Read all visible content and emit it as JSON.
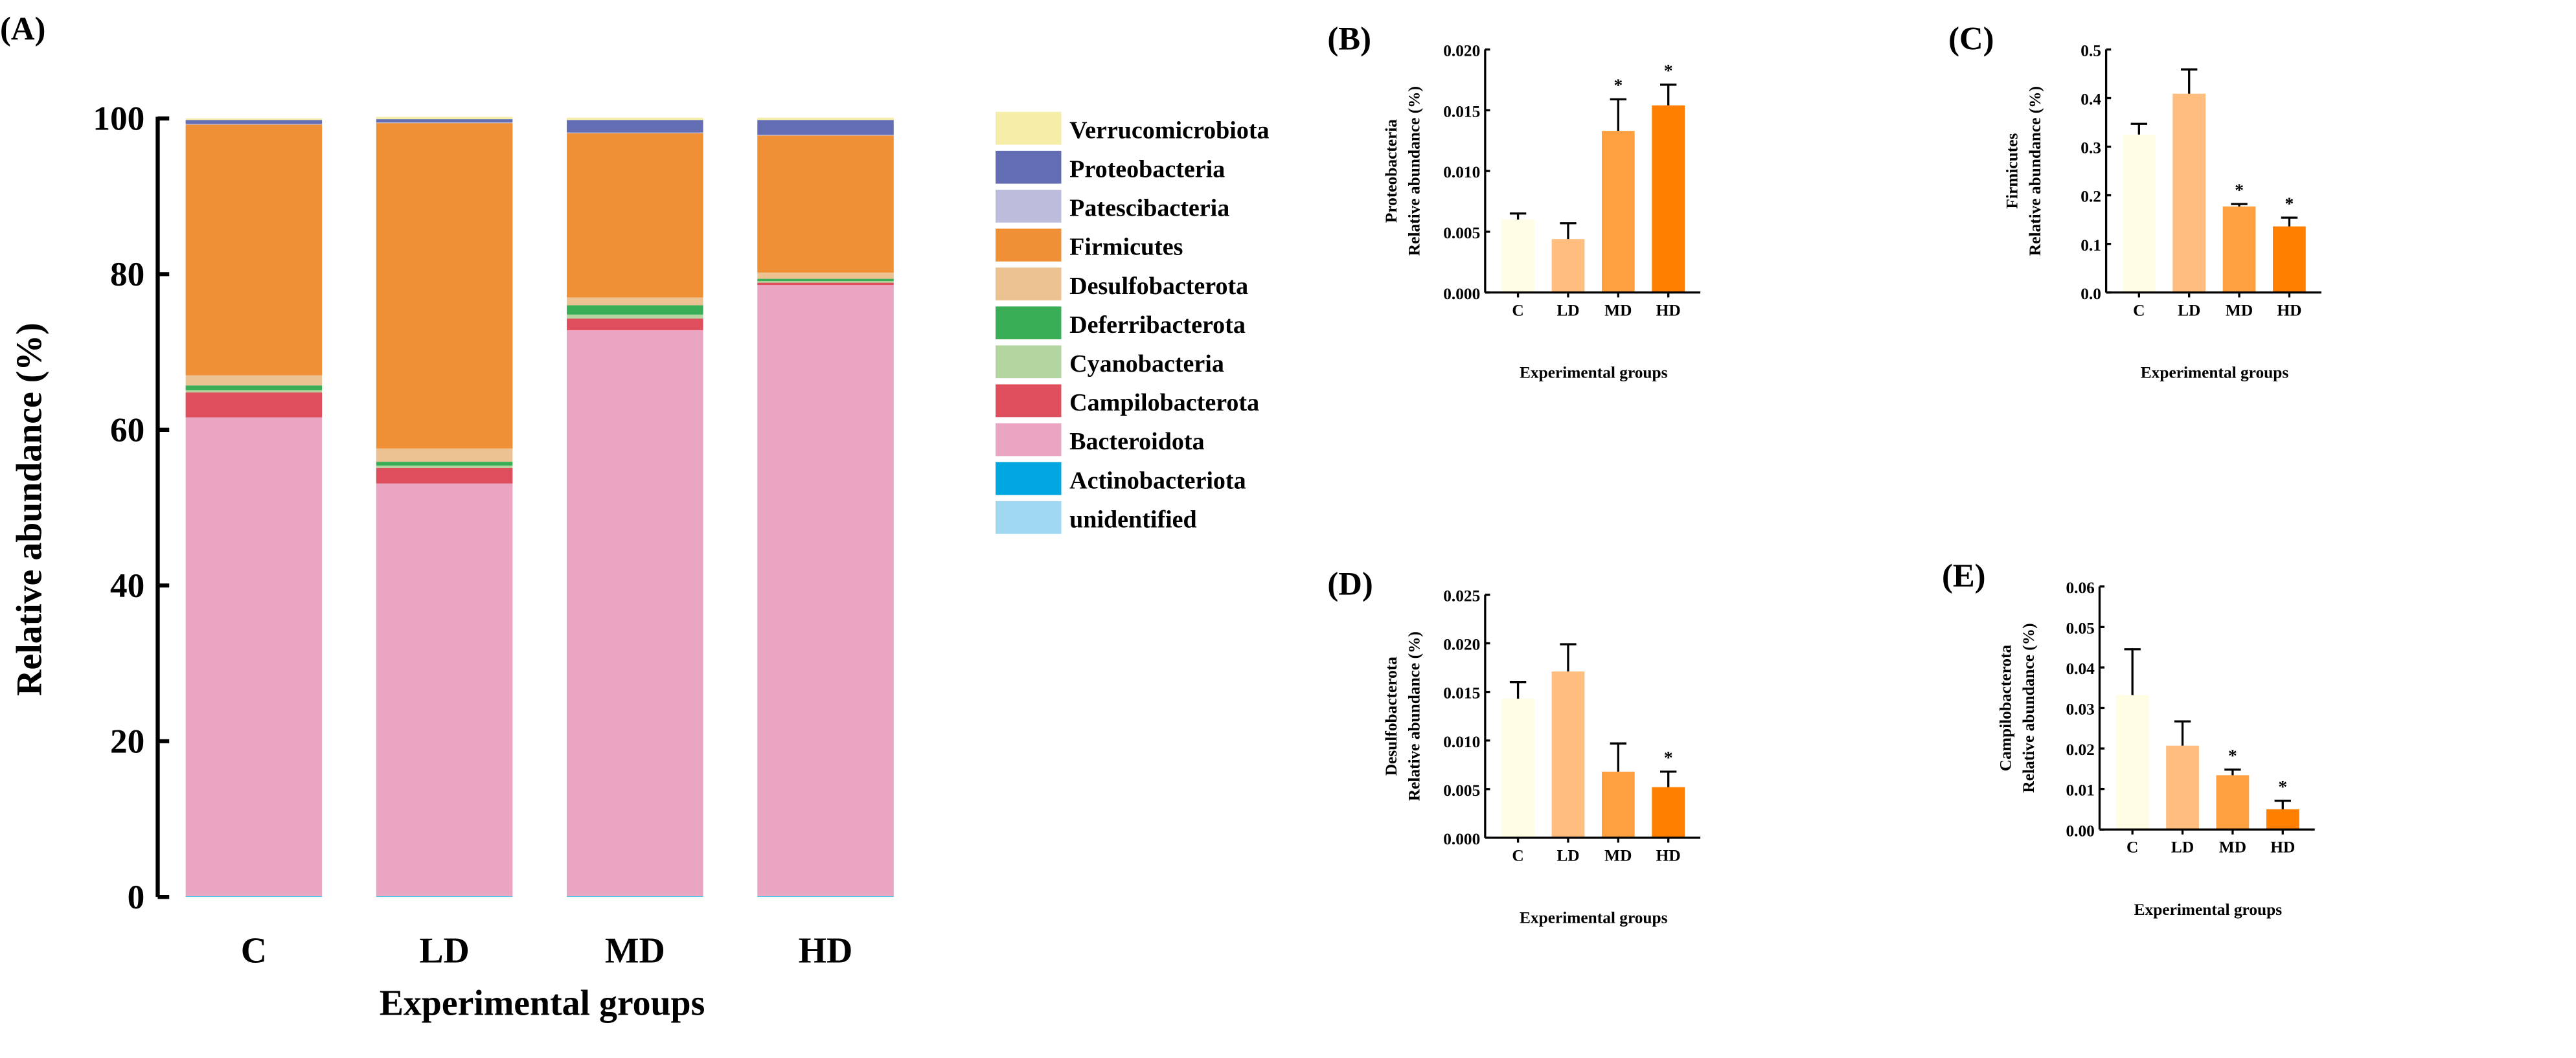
{
  "chart_data": [
    {
      "panel": "(A)",
      "type": "bar",
      "stacked": true,
      "categories": [
        "C",
        "LD",
        "MD",
        "HD"
      ],
      "xlabel": "Experimental groups",
      "ylabel": "Relative abundance (%)",
      "ylim": [
        0,
        100
      ],
      "yticks": [
        "0",
        "20",
        "40",
        "60",
        "80",
        "100"
      ],
      "legend_position": "right",
      "series": [
        {
          "name": "Verrucomicrobiota",
          "color": "#f5eda8",
          "values": [
            0.2,
            0.3,
            0.3,
            0.3
          ]
        },
        {
          "name": "Proteobacteria",
          "color": "#626db3",
          "values": [
            0.5,
            0.4,
            1.6,
            1.9
          ]
        },
        {
          "name": "Patescibacteria",
          "color": "#bcbcdc",
          "values": [
            0.1,
            0.1,
            0.1,
            0.1
          ]
        },
        {
          "name": "Firmicutes",
          "color": "#ef9036",
          "values": [
            32.2,
            41.8,
            21.1,
            17.6
          ]
        },
        {
          "name": "Desulfobacterota",
          "color": "#edc293",
          "values": [
            1.3,
            1.7,
            1.0,
            0.8
          ]
        },
        {
          "name": "Deferribacterota",
          "color": "#3aae57",
          "values": [
            0.6,
            0.5,
            1.2,
            0.3
          ]
        },
        {
          "name": "Cyanobacteria",
          "color": "#b3d59f",
          "values": [
            0.3,
            0.3,
            0.5,
            0.2
          ]
        },
        {
          "name": "Campilobacterota",
          "color": "#df4e5d",
          "values": [
            3.2,
            2.0,
            1.5,
            0.3
          ]
        },
        {
          "name": "Bacteroidota",
          "color": "#e9a5c1",
          "values": [
            61.5,
            53.0,
            72.7,
            78.5
          ]
        },
        {
          "name": "Actinobacteriota",
          "color": "#00a6e0",
          "values": [
            0.05,
            0.05,
            0.05,
            0.05
          ]
        },
        {
          "name": "unidentified",
          "color": "#9fd8f0",
          "values": [
            0.05,
            0.05,
            0.05,
            0.05
          ]
        }
      ]
    },
    {
      "panel": "(B)",
      "type": "bar",
      "categories": [
        "C",
        "LD",
        "MD",
        "HD"
      ],
      "values": [
        0.006,
        0.0044,
        0.0133,
        0.0154
      ],
      "errors": [
        0.0005,
        0.0013,
        0.0026,
        0.0017
      ],
      "significant": [
        "",
        "",
        "*",
        "*"
      ],
      "ylabel_taxon": "Proteobacteria",
      "ylabel": "Relative abundance (%)",
      "xlabel": "Experimental groups",
      "ylim": [
        0,
        0.02
      ],
      "yticks": [
        "0.000",
        "0.005",
        "0.010",
        "0.015",
        "0.020"
      ],
      "colors": [
        "#fffde3",
        "#ffbe80",
        "#ffa040",
        "#ff8000"
      ]
    },
    {
      "panel": "(C)",
      "type": "bar",
      "categories": [
        "C",
        "LD",
        "MD",
        "HD"
      ],
      "values": [
        0.325,
        0.409,
        0.177,
        0.136
      ],
      "errors": [
        0.022,
        0.05,
        0.005,
        0.018
      ],
      "significant": [
        "",
        "",
        "*",
        "*"
      ],
      "ylabel_taxon": "Firmicutes",
      "ylabel": "Relative abundance (%)",
      "xlabel": "Experimental groups",
      "ylim": [
        0,
        0.5
      ],
      "yticks": [
        "0.0",
        "0.1",
        "0.2",
        "0.3",
        "0.4",
        "0.5"
      ],
      "colors": [
        "#fffde3",
        "#ffbe80",
        "#ffa040",
        "#ff8000"
      ]
    },
    {
      "panel": "(D)",
      "type": "bar",
      "categories": [
        "C",
        "LD",
        "MD",
        "HD"
      ],
      "values": [
        0.0143,
        0.0171,
        0.0068,
        0.0052
      ],
      "errors": [
        0.0017,
        0.0028,
        0.0029,
        0.0016
      ],
      "significant": [
        "",
        "",
        "",
        "*"
      ],
      "ylabel_taxon": "Desulfobacterota",
      "ylabel": "Relative abundance (%)",
      "xlabel": "Experimental groups",
      "ylim": [
        0,
        0.025
      ],
      "yticks": [
        "0.000",
        "0.005",
        "0.010",
        "0.015",
        "0.020",
        "0.025"
      ],
      "colors": [
        "#fffde3",
        "#ffbe80",
        "#ffa040",
        "#ff8000"
      ]
    },
    {
      "panel": "(E)",
      "type": "bar",
      "categories": [
        "C",
        "LD",
        "MD",
        "HD"
      ],
      "values": [
        0.0332,
        0.0207,
        0.0134,
        0.005
      ],
      "errors": [
        0.0113,
        0.006,
        0.0014,
        0.0021
      ],
      "significant": [
        "",
        "",
        "*",
        "*"
      ],
      "ylabel_taxon": "Campilobacterota",
      "ylabel": "Relative abundance (%)",
      "xlabel": "Experimental groups",
      "ylim": [
        0,
        0.06
      ],
      "yticks": [
        "0.00",
        "0.01",
        "0.02",
        "0.03",
        "0.04",
        "0.05",
        "0.06"
      ],
      "colors": [
        "#fffde3",
        "#ffbe80",
        "#ffa040",
        "#ff8000"
      ]
    }
  ]
}
